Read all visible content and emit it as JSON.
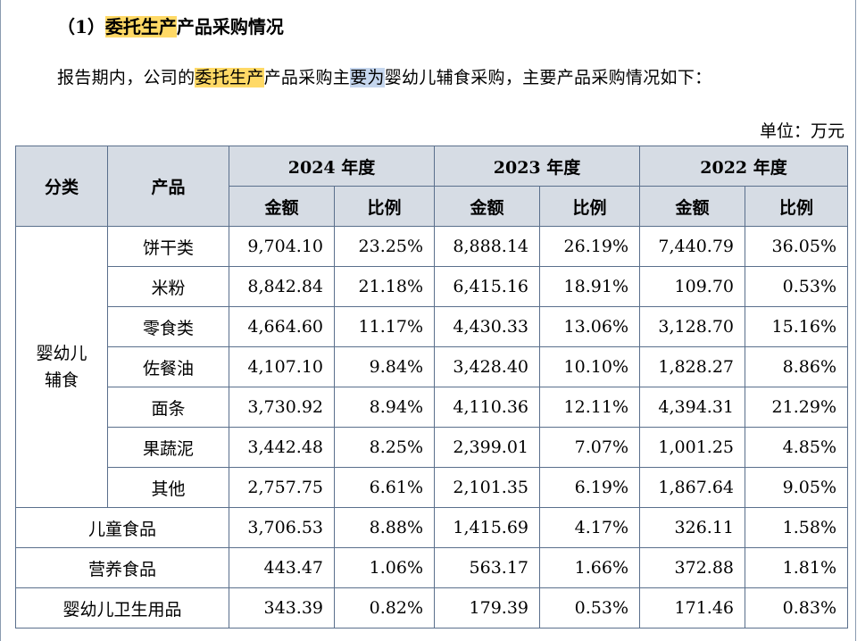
{
  "heading": {
    "prefix": "（1）",
    "highlight": "委托生产",
    "rest": "产品采购情况"
  },
  "paragraph": {
    "part1": "报告期内，公司的",
    "highlight": "委托生产",
    "part2": "产品采购主",
    "selected": "要为",
    "part3": "婴幼儿辅食采购，主要产品采购情况如下："
  },
  "unit": "单位：万元",
  "table": {
    "col_category": "分类",
    "col_product": "产品",
    "years": [
      "2024 年度",
      "2023 年度",
      "2022 年度"
    ],
    "sub_amount": "金额",
    "sub_ratio": "比例",
    "group_label_line1": "婴幼儿",
    "group_label_line2": "辅食",
    "group_rows": [
      {
        "product": "饼干类",
        "v": [
          "9,704.10",
          "23.25%",
          "8,888.14",
          "26.19%",
          "7,440.79",
          "36.05%"
        ]
      },
      {
        "product": "米粉",
        "v": [
          "8,842.84",
          "21.18%",
          "6,415.16",
          "18.91%",
          "109.70",
          "0.53%"
        ]
      },
      {
        "product": "零食类",
        "v": [
          "4,664.60",
          "11.17%",
          "4,430.33",
          "13.06%",
          "3,128.70",
          "15.16%"
        ]
      },
      {
        "product": "佐餐油",
        "v": [
          "4,107.10",
          "9.84%",
          "3,428.40",
          "10.10%",
          "1,828.27",
          "8.86%"
        ]
      },
      {
        "product": "面条",
        "v": [
          "3,730.92",
          "8.94%",
          "4,110.36",
          "12.11%",
          "4,394.31",
          "21.29%"
        ]
      },
      {
        "product": "果蔬泥",
        "v": [
          "3,442.48",
          "8.25%",
          "2,399.01",
          "7.07%",
          "1,001.25",
          "4.85%"
        ]
      },
      {
        "product": "其他",
        "v": [
          "2,757.75",
          "6.61%",
          "2,101.35",
          "6.19%",
          "1,867.64",
          "9.05%"
        ]
      }
    ],
    "other_rows": [
      {
        "label": "儿童食品",
        "v": [
          "3,706.53",
          "8.88%",
          "1,415.69",
          "4.17%",
          "326.11",
          "1.58%"
        ]
      },
      {
        "label": "营养食品",
        "v": [
          "443.47",
          "1.06%",
          "563.17",
          "1.66%",
          "372.88",
          "1.81%"
        ]
      },
      {
        "label": "婴幼儿卫生用品",
        "v": [
          "343.39",
          "0.82%",
          "179.39",
          "0.53%",
          "171.46",
          "0.83%"
        ]
      }
    ]
  }
}
